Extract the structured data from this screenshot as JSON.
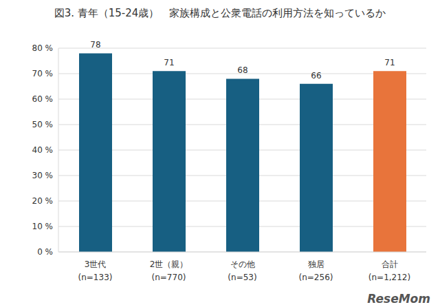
{
  "chart_data": {
    "type": "bar",
    "title": "図3. 青年（15-24歳）　家族構成と公衆電話の利用方法を知っているか",
    "categories": [
      "3世代\n(n=133)",
      "2世（親）\n(n=770)",
      "その他\n(n=53)",
      "独居\n(n=256)",
      "合計\n(n=1,212)"
    ],
    "values": [
      78,
      71,
      68,
      66,
      71
    ],
    "colors": [
      "#175f82",
      "#175f82",
      "#175f82",
      "#175f82",
      "#e8743b"
    ],
    "ylim": [
      0,
      80
    ],
    "yticks": [
      {
        "value": 0,
        "label": "0 %"
      },
      {
        "value": 10,
        "label": "10 %"
      },
      {
        "value": 20,
        "label": "20 %"
      },
      {
        "value": 30,
        "label": "30 %"
      },
      {
        "value": 40,
        "label": "40 %"
      },
      {
        "value": 50,
        "label": "50 %"
      },
      {
        "value": 60,
        "label": "60 %"
      },
      {
        "value": 70,
        "label": "70 %"
      },
      {
        "value": 80,
        "label": "80 %"
      }
    ],
    "grid": true,
    "data_labels": true,
    "annotations": [
      "ReseMom"
    ]
  }
}
